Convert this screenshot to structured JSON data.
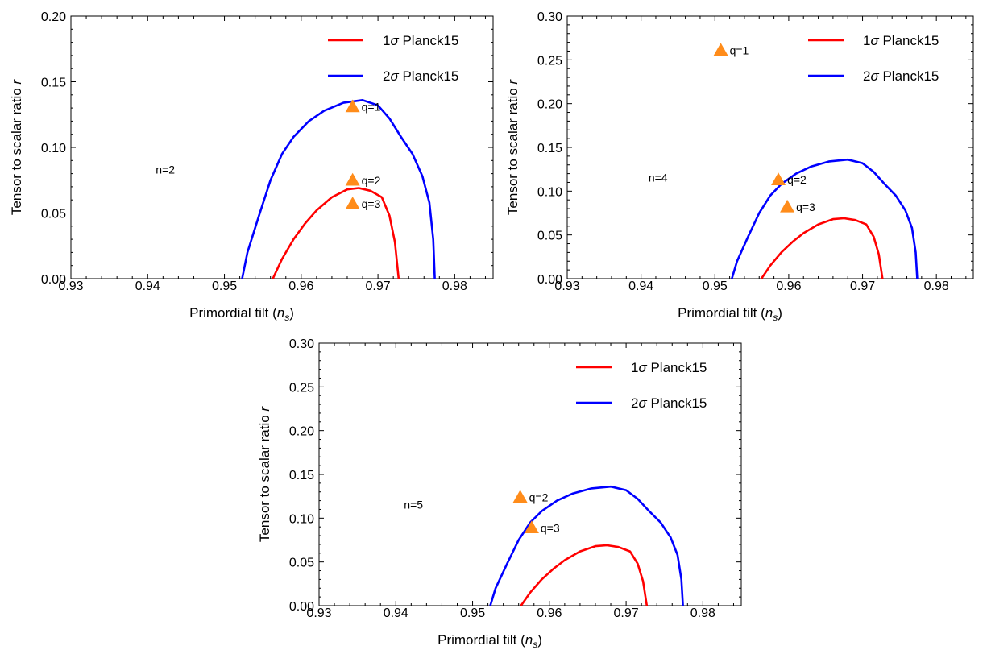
{
  "chart_data": [
    {
      "type": "line",
      "xlabel": "Primordial tilt (n_s)",
      "ylabel": "Tensor to scalar ratio r",
      "xlim": [
        0.93,
        0.985
      ],
      "ylim": [
        0,
        0.2
      ],
      "xticks": [
        "0.93",
        "0.94",
        "0.95",
        "0.96",
        "0.97",
        "0.98"
      ],
      "yticks": [
        "0.00",
        "0.05",
        "0.10",
        "0.15",
        "0.20"
      ],
      "legend_position": "top-right",
      "annotation": "n=2",
      "contours": [
        {
          "name": "1σ Planck15",
          "color": "#ff0000",
          "x": [
            0.9563,
            0.9575,
            0.959,
            0.9605,
            0.962,
            0.964,
            0.966,
            0.9675,
            0.969,
            0.9705,
            0.9715,
            0.9722,
            0.9727
          ],
          "y": [
            0.0,
            0.015,
            0.03,
            0.042,
            0.052,
            0.062,
            0.068,
            0.069,
            0.067,
            0.062,
            0.048,
            0.028,
            0.0
          ]
        },
        {
          "name": "2σ Planck15",
          "color": "#0000ff",
          "x": [
            0.9523,
            0.953,
            0.9545,
            0.956,
            0.9575,
            0.959,
            0.961,
            0.963,
            0.9655,
            0.968,
            0.97,
            0.9715,
            0.973,
            0.9745,
            0.9758,
            0.9767,
            0.9772,
            0.9774
          ],
          "y": [
            0.0,
            0.02,
            0.048,
            0.075,
            0.095,
            0.108,
            0.12,
            0.128,
            0.134,
            0.136,
            0.132,
            0.122,
            0.108,
            0.095,
            0.078,
            0.058,
            0.03,
            0.0
          ]
        }
      ],
      "points": [
        {
          "label": "q=1",
          "x": 0.9667,
          "y": 0.131
        },
        {
          "label": "q=2",
          "x": 0.9667,
          "y": 0.075
        },
        {
          "label": "q=3",
          "x": 0.9667,
          "y": 0.057
        }
      ]
    },
    {
      "type": "line",
      "xlabel": "Primordial tilt (n_s)",
      "ylabel": "Tensor to scalar ratio r",
      "xlim": [
        0.93,
        0.985
      ],
      "ylim": [
        0,
        0.3
      ],
      "xticks": [
        "0.93",
        "0.94",
        "0.95",
        "0.96",
        "0.97",
        "0.98"
      ],
      "yticks": [
        "0.00",
        "0.05",
        "0.10",
        "0.15",
        "0.20",
        "0.25",
        "0.30"
      ],
      "legend_position": "top-right",
      "annotation": "n=4",
      "contours": [
        {
          "name": "1σ Planck15",
          "color": "#ff0000",
          "x": [
            0.9563,
            0.9575,
            0.959,
            0.9605,
            0.962,
            0.964,
            0.966,
            0.9675,
            0.969,
            0.9705,
            0.9715,
            0.9722,
            0.9727
          ],
          "y": [
            0.0,
            0.015,
            0.03,
            0.042,
            0.052,
            0.062,
            0.068,
            0.069,
            0.067,
            0.062,
            0.048,
            0.028,
            0.0
          ]
        },
        {
          "name": "2σ Planck15",
          "color": "#0000ff",
          "x": [
            0.9523,
            0.953,
            0.9545,
            0.956,
            0.9575,
            0.959,
            0.961,
            0.963,
            0.9655,
            0.968,
            0.97,
            0.9715,
            0.973,
            0.9745,
            0.9758,
            0.9767,
            0.9772,
            0.9774
          ],
          "y": [
            0.0,
            0.02,
            0.048,
            0.075,
            0.095,
            0.108,
            0.12,
            0.128,
            0.134,
            0.136,
            0.132,
            0.122,
            0.108,
            0.095,
            0.078,
            0.058,
            0.03,
            0.0
          ]
        }
      ],
      "points": [
        {
          "label": "q=1",
          "x": 0.9508,
          "y": 0.261
        },
        {
          "label": "q=2",
          "x": 0.9586,
          "y": 0.113
        },
        {
          "label": "q=3",
          "x": 0.9598,
          "y": 0.082
        }
      ]
    },
    {
      "type": "line",
      "xlabel": "Primordial tilt (n_s)",
      "ylabel": "Tensor to scalar ratio r",
      "xlim": [
        0.93,
        0.985
      ],
      "ylim": [
        0,
        0.3
      ],
      "xticks": [
        "0.93",
        "0.94",
        "0.95",
        "0.96",
        "0.97",
        "0.98"
      ],
      "yticks": [
        "0.00",
        "0.05",
        "0.10",
        "0.15",
        "0.20",
        "0.25",
        "0.30"
      ],
      "legend_position": "top-right",
      "annotation": "n=5",
      "contours": [
        {
          "name": "1σ Planck15",
          "color": "#ff0000",
          "x": [
            0.9563,
            0.9575,
            0.959,
            0.9605,
            0.962,
            0.964,
            0.966,
            0.9675,
            0.969,
            0.9705,
            0.9715,
            0.9722,
            0.9727
          ],
          "y": [
            0.0,
            0.015,
            0.03,
            0.042,
            0.052,
            0.062,
            0.068,
            0.069,
            0.067,
            0.062,
            0.048,
            0.028,
            0.0
          ]
        },
        {
          "name": "2σ Planck15",
          "color": "#0000ff",
          "x": [
            0.9523,
            0.953,
            0.9545,
            0.956,
            0.9575,
            0.959,
            0.961,
            0.963,
            0.9655,
            0.968,
            0.97,
            0.9715,
            0.973,
            0.9745,
            0.9758,
            0.9767,
            0.9772,
            0.9774
          ],
          "y": [
            0.0,
            0.02,
            0.048,
            0.075,
            0.095,
            0.108,
            0.12,
            0.128,
            0.134,
            0.136,
            0.132,
            0.122,
            0.108,
            0.095,
            0.078,
            0.058,
            0.03,
            0.0
          ]
        }
      ],
      "points": [
        {
          "label": "q=2",
          "x": 0.9562,
          "y": 0.124
        },
        {
          "label": "q=3",
          "x": 0.9577,
          "y": 0.089
        }
      ]
    }
  ],
  "marker_color": "#ff8c1a"
}
